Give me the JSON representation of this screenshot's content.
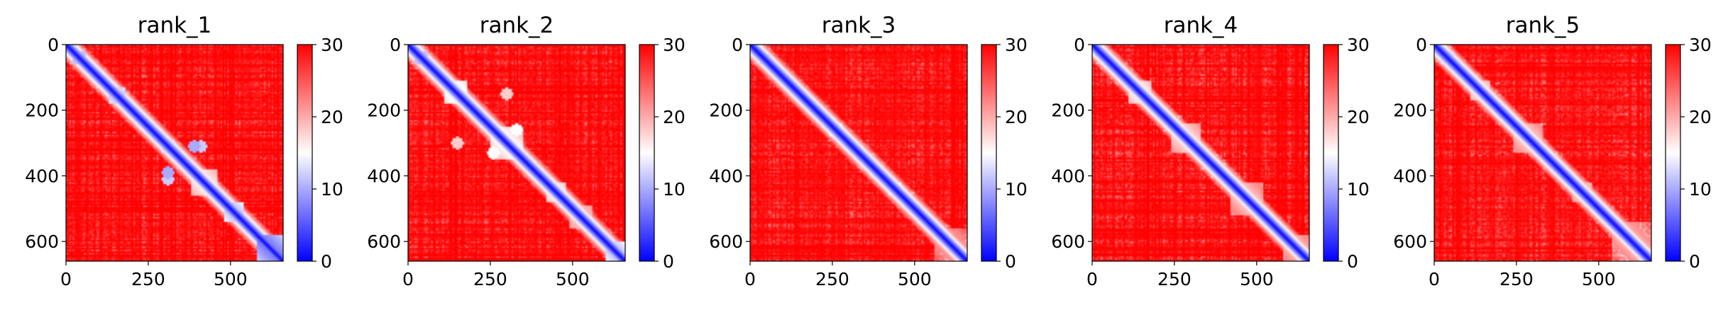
{
  "colormap": {
    "name": "bwr",
    "low": "#0000ff",
    "mid": "#ffffff",
    "high": "#ff0000"
  },
  "chart_data": [
    {
      "type": "heatmap",
      "title": "rank_1",
      "xlim": [
        0,
        660
      ],
      "ylim": [
        660,
        0
      ],
      "xticks": [
        "0",
        "250",
        "500"
      ],
      "yticks": [
        "0",
        "200",
        "400",
        "600"
      ],
      "xtick_values": [
        0,
        250,
        500
      ],
      "ytick_values": [
        0,
        200,
        400,
        600
      ],
      "colorbar": {
        "range": [
          0,
          30
        ],
        "ticks": [
          "0",
          "10",
          "20",
          "30"
        ],
        "tick_values": [
          0,
          10,
          20,
          30
        ]
      },
      "diagonal_value": 0,
      "background_value": 30,
      "domains": [
        [
          20,
          60,
          9
        ],
        [
          130,
          180,
          10
        ],
        [
          240,
          270,
          12
        ],
        [
          290,
          330,
          11
        ],
        [
          380,
          460,
          14
        ],
        [
          480,
          540,
          10
        ],
        [
          580,
          660,
          6
        ]
      ],
      "contacts": [
        [
          310,
          390,
          10
        ],
        [
          310,
          410,
          12
        ]
      ]
    },
    {
      "type": "heatmap",
      "title": "rank_2",
      "xlim": [
        0,
        660
      ],
      "ylim": [
        660,
        0
      ],
      "xticks": [
        "0",
        "250",
        "500"
      ],
      "yticks": [
        "0",
        "200",
        "400",
        "600"
      ],
      "xtick_values": [
        0,
        250,
        500
      ],
      "ytick_values": [
        0,
        200,
        400,
        600
      ],
      "colorbar": {
        "range": [
          0,
          30
        ],
        "ticks": [
          "0",
          "10",
          "20",
          "30"
        ],
        "tick_values": [
          0,
          10,
          20,
          30
        ]
      },
      "diagonal_value": 0,
      "background_value": 30,
      "domains": [
        [
          20,
          60,
          9
        ],
        [
          110,
          180,
          12
        ],
        [
          250,
          350,
          13
        ],
        [
          420,
          480,
          14
        ],
        [
          490,
          560,
          16
        ],
        [
          600,
          660,
          10
        ]
      ],
      "contacts": [
        [
          150,
          300,
          18
        ],
        [
          260,
          330,
          15
        ]
      ]
    },
    {
      "type": "heatmap",
      "title": "rank_3",
      "xlim": [
        0,
        660
      ],
      "ylim": [
        660,
        0
      ],
      "xticks": [
        "0",
        "250",
        "500"
      ],
      "yticks": [
        "0",
        "200",
        "400",
        "600"
      ],
      "xtick_values": [
        0,
        250,
        500
      ],
      "ytick_values": [
        0,
        200,
        400,
        600
      ],
      "colorbar": {
        "range": [
          0,
          30
        ],
        "ticks": [
          "0",
          "10",
          "20",
          "30"
        ],
        "tick_values": [
          0,
          10,
          20,
          30
        ]
      },
      "diagonal_value": 0,
      "background_value": 30,
      "domains": [
        [
          30,
          60,
          10
        ],
        [
          140,
          170,
          14
        ],
        [
          240,
          280,
          12
        ],
        [
          420,
          460,
          13
        ],
        [
          560,
          660,
          18
        ]
      ],
      "contacts": []
    },
    {
      "type": "heatmap",
      "title": "rank_4",
      "xlim": [
        0,
        660
      ],
      "ylim": [
        660,
        0
      ],
      "xticks": [
        "0",
        "250",
        "500"
      ],
      "yticks": [
        "0",
        "200",
        "400",
        "600"
      ],
      "xtick_values": [
        0,
        250,
        500
      ],
      "ytick_values": [
        0,
        200,
        400,
        600
      ],
      "colorbar": {
        "range": [
          0,
          30
        ],
        "ticks": [
          "0",
          "10",
          "20",
          "30"
        ],
        "tick_values": [
          0,
          10,
          20,
          30
        ]
      },
      "diagonal_value": 0,
      "background_value": 30,
      "domains": [
        [
          110,
          180,
          14
        ],
        [
          240,
          330,
          15
        ],
        [
          420,
          520,
          16
        ],
        [
          580,
          660,
          17
        ]
      ],
      "contacts": []
    },
    {
      "type": "heatmap",
      "title": "rank_5",
      "xlim": [
        0,
        660
      ],
      "ylim": [
        660,
        0
      ],
      "xticks": [
        "0",
        "250",
        "500"
      ],
      "yticks": [
        "0",
        "200",
        "400",
        "600"
      ],
      "xtick_values": [
        0,
        250,
        500
      ],
      "ytick_values": [
        0,
        200,
        400,
        600
      ],
      "colorbar": {
        "range": [
          0,
          30
        ],
        "ticks": [
          "0",
          "10",
          "20",
          "30"
        ],
        "tick_values": [
          0,
          10,
          20,
          30
        ]
      },
      "diagonal_value": 0,
      "background_value": 30,
      "domains": [
        [
          20,
          60,
          11
        ],
        [
          110,
          170,
          15
        ],
        [
          240,
          330,
          16
        ],
        [
          420,
          480,
          16
        ],
        [
          540,
          660,
          17
        ]
      ],
      "contacts": []
    }
  ]
}
